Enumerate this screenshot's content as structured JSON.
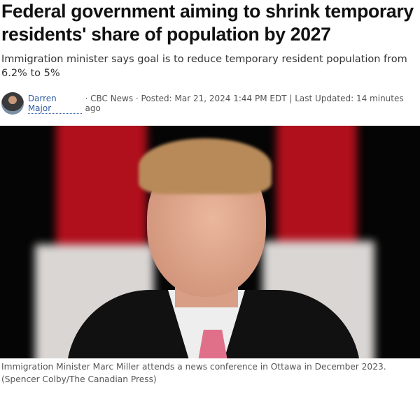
{
  "article": {
    "headline": "Federal government aiming to shrink temporary residents' share of population by 2027",
    "subheadline": "Immigration minister says goal is to reduce temporary resident population from 6.2% to 5%",
    "byline": {
      "author": "Darren Major",
      "source": "· CBC News · Posted: Mar 21, 2024 1:44 PM EDT | Last Updated: 14 minutes ago"
    },
    "photo_caption": "Immigration Minister Marc Miller attends a news conference in Ottawa in December 2023. (Spencer Colby/The Canadian Press)"
  },
  "colors": {
    "link": "#2f5ea8",
    "flag_red": "#c8102e"
  }
}
